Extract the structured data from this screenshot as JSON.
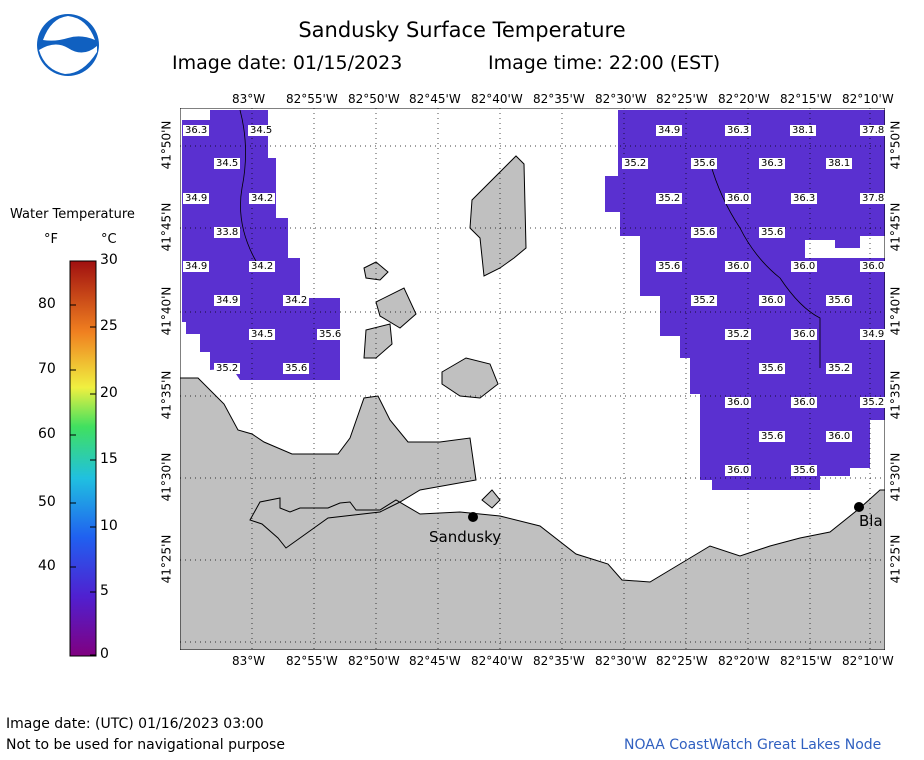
{
  "header": {
    "title": "Sandusky Surface Temperature",
    "image_date": "Image date: 01/15/2023",
    "image_time": "Image time: 22:00 (EST)"
  },
  "legend": {
    "title": "Water Temperature",
    "unit_f": "°F",
    "unit_c": "°C",
    "f_ticks": [
      "80",
      "70",
      "60",
      "50",
      "40"
    ],
    "c_ticks": [
      "30",
      "25",
      "20",
      "15",
      "10",
      "5",
      "0"
    ],
    "colors": [
      "#800080",
      "#5020d0",
      "#2060f0",
      "#20c0e0",
      "#40e060",
      "#f0f040",
      "#f08020",
      "#a01010"
    ]
  },
  "map": {
    "lon_labels": [
      "83°W",
      "82°55'W",
      "82°50'W",
      "82°45'W",
      "82°40'W",
      "82°35'W",
      "82°30'W",
      "82°25'W",
      "82°20'W",
      "82°15'W",
      "82°10'W"
    ],
    "lat_labels": [
      "41°50'N",
      "41°45'N",
      "41°40'N",
      "41°35'N",
      "41°30'N",
      "41°25'N"
    ],
    "places": [
      "Sandusky",
      "Bla"
    ],
    "water_color": "#5a30d0",
    "land_color": "#c0c0c0",
    "temperatures": [
      "36.3",
      "34.5",
      "34.5",
      "34.9",
      "34.2",
      "33.8",
      "34.9",
      "34.2",
      "34.9",
      "34.2",
      "34.5",
      "35.6",
      "35.2",
      "35.6",
      "34.9",
      "36.3",
      "38.1",
      "37.8",
      "35.2",
      "35.6",
      "36.3",
      "38.1",
      "35.2",
      "36.0",
      "36.3",
      "37.8",
      "35.6",
      "35.6",
      "35.6",
      "36.0",
      "36.0",
      "36.0",
      "35.2",
      "36.0",
      "35.6",
      "35.2",
      "36.0",
      "34.9",
      "35.6",
      "35.2",
      "36.0",
      "36.0",
      "35.2",
      "35.6",
      "36.0",
      "36.0",
      "35.6"
    ]
  },
  "footer": {
    "utc_date": "Image date: (UTC) 01/16/2023  03:00",
    "disclaimer": "Not to be used for navigational purpose",
    "credit": "NOAA CoastWatch Great Lakes Node"
  }
}
